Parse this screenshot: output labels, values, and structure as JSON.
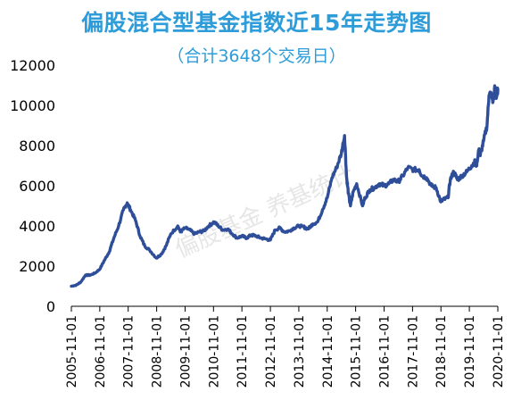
{
  "chart_data": {
    "type": "line",
    "title": "偏股混合型基金指数近15年走势图",
    "subtitle": "（合计3648个交易日）",
    "watermark": "偏股基金 养基统计",
    "xlabel": "",
    "ylabel": "",
    "ylim": [
      0,
      12000
    ],
    "yticks": [
      0,
      2000,
      4000,
      6000,
      8000,
      10000,
      12000
    ],
    "ytick_labels": [
      "0",
      "2000",
      "4000",
      "6000",
      "8000",
      "10000",
      "12000"
    ],
    "xlim": [
      "2005-11-01",
      "2020-11-01"
    ],
    "xtick_labels": [
      "2005-11-01",
      "2006-11-01",
      "2007-11-01",
      "2008-11-01",
      "2009-11-01",
      "2010-11-01",
      "2011-11-01",
      "2012-11-01",
      "2013-11-01",
      "2014-11-01",
      "2015-11-01",
      "2016-11-01",
      "2017-11-01",
      "2018-11-01",
      "2019-11-01",
      "2020-11-01"
    ],
    "grid": false,
    "colors": {
      "line": "#2F4E9A",
      "title": "#2E9CD8",
      "axis": "#000000"
    },
    "series": [
      {
        "x": [
          "2005-11-01",
          "2006-01-01",
          "2006-03-01",
          "2006-05-01",
          "2006-07-01",
          "2006-09-01",
          "2006-11-01",
          "2007-01-01",
          "2007-03-01",
          "2007-05-01",
          "2007-07-01",
          "2007-09-01",
          "2007-10-20",
          "2007-12-01",
          "2008-02-01",
          "2008-04-01",
          "2008-06-01",
          "2008-08-01",
          "2008-10-28",
          "2009-01-01",
          "2009-03-01",
          "2009-05-01",
          "2009-07-31",
          "2009-09-01",
          "2009-11-01",
          "2010-01-01",
          "2010-03-01",
          "2010-05-01",
          "2010-07-01",
          "2010-09-01",
          "2010-11-08",
          "2011-01-01",
          "2011-03-01",
          "2011-05-01",
          "2011-07-01",
          "2011-09-01",
          "2011-11-01",
          "2012-01-01",
          "2012-03-01",
          "2012-05-01",
          "2012-07-01",
          "2012-09-01",
          "2012-11-01",
          "2013-01-01",
          "2013-03-01",
          "2013-05-01",
          "2013-07-01",
          "2013-09-01",
          "2013-11-01",
          "2014-01-01",
          "2014-03-01",
          "2014-05-01",
          "2014-07-01",
          "2014-09-01",
          "2014-11-01",
          "2015-01-01",
          "2015-03-01",
          "2015-05-01",
          "2015-06-12",
          "2015-07-08",
          "2015-08-01",
          "2015-08-26",
          "2015-10-01",
          "2015-11-15",
          "2016-01-28",
          "2016-03-01",
          "2016-05-01",
          "2016-07-01",
          "2016-09-01",
          "2016-11-01",
          "2017-01-01",
          "2017-03-01",
          "2017-05-01",
          "2017-07-01",
          "2017-09-01",
          "2017-11-15",
          "2018-01-25",
          "2018-03-01",
          "2018-05-01",
          "2018-07-01",
          "2018-09-01",
          "2018-10-30",
          "2018-12-01",
          "2019-01-31",
          "2019-03-01",
          "2019-04-15",
          "2019-06-01",
          "2019-08-01",
          "2019-10-01",
          "2019-12-01",
          "2020-01-15",
          "2020-02-01",
          "2020-03-01",
          "2020-03-20",
          "2020-05-01",
          "2020-06-15",
          "2020-07-10",
          "2020-08-01",
          "2020-09-01",
          "2020-09-25",
          "2020-10-15",
          "2020-11-01"
        ],
        "y": [
          1000,
          1050,
          1200,
          1550,
          1550,
          1650,
          1850,
          2300,
          2700,
          3400,
          4000,
          4800,
          5150,
          4800,
          4300,
          3500,
          3000,
          2800,
          2400,
          2600,
          3000,
          3600,
          4000,
          3700,
          3900,
          3800,
          3600,
          3700,
          3750,
          4000,
          4200,
          4000,
          3800,
          3850,
          3600,
          3400,
          3500,
          3400,
          3550,
          3500,
          3400,
          3350,
          3300,
          3800,
          3900,
          3700,
          3750,
          3900,
          4000,
          3950,
          3850,
          4100,
          4200,
          4800,
          5400,
          6400,
          6900,
          7600,
          8500,
          6400,
          5600,
          5000,
          5700,
          6100,
          5000,
          5400,
          5800,
          5900,
          6100,
          6000,
          6100,
          6300,
          6200,
          6500,
          6900,
          6800,
          6800,
          6500,
          6400,
          6000,
          5900,
          5200,
          5300,
          5400,
          6300,
          6700,
          6300,
          6500,
          6700,
          7000,
          7200,
          7000,
          7800,
          7500,
          8200,
          9000,
          10500,
          10600,
          10200,
          10900,
          10400,
          10800
        ]
      }
    ]
  }
}
